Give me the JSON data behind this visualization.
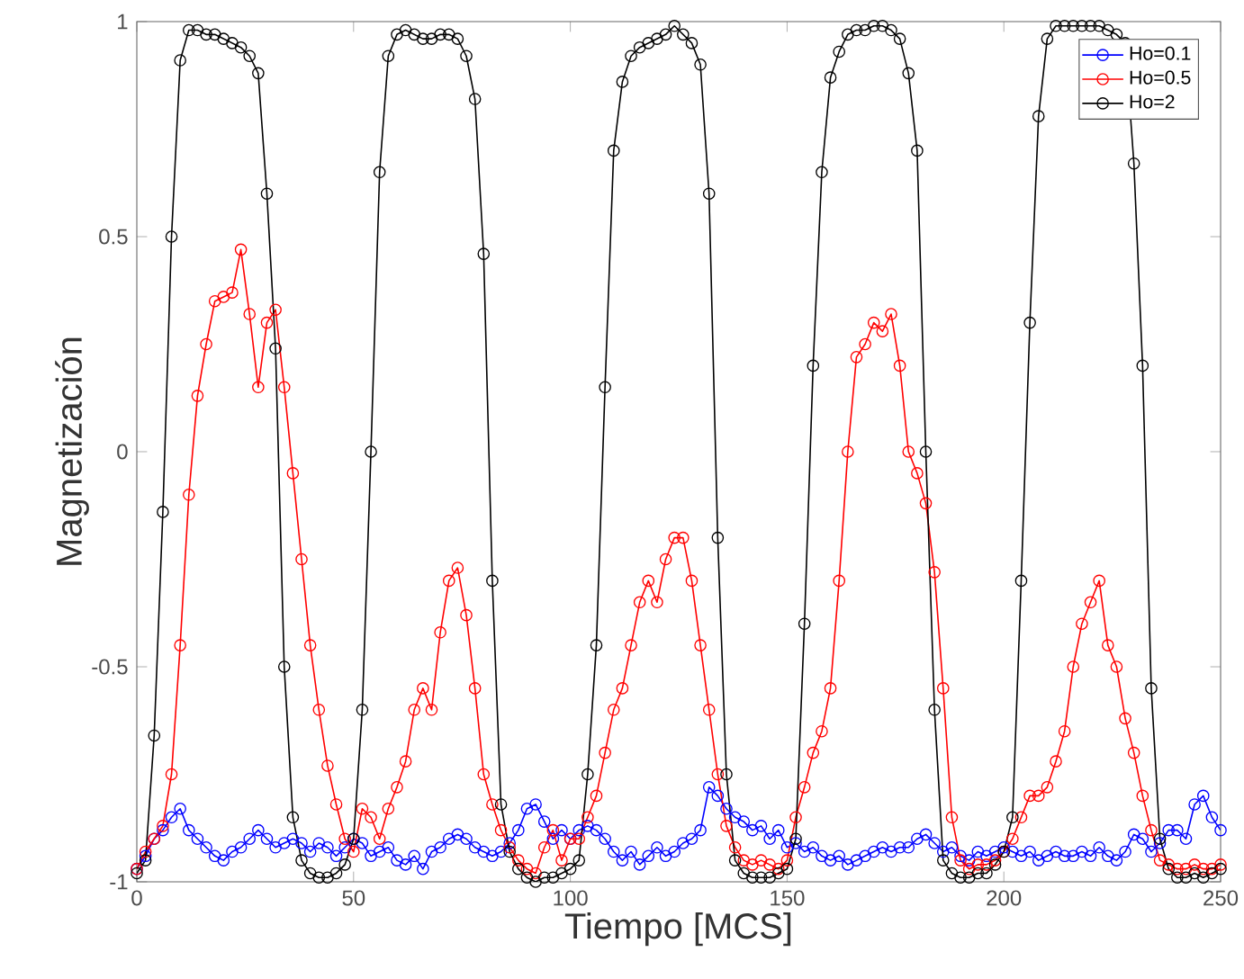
{
  "chart_data": {
    "type": "line",
    "xlabel": "Tiempo [MCS]",
    "ylabel": "Magnetización",
    "xlim": [
      0,
      250
    ],
    "ylim": [
      -1,
      1
    ],
    "xticks": [
      0,
      50,
      100,
      150,
      200,
      250
    ],
    "yticks": [
      -1,
      -0.5,
      0,
      0.5,
      1
    ],
    "grid": false,
    "legend": "top right",
    "marker": "circle",
    "line_style": "solid",
    "x": [
      0,
      2,
      4,
      6,
      8,
      10,
      12,
      14,
      16,
      18,
      20,
      22,
      24,
      26,
      28,
      30,
      32,
      34,
      36,
      38,
      40,
      42,
      44,
      46,
      48,
      50,
      52,
      54,
      56,
      58,
      60,
      62,
      64,
      66,
      68,
      70,
      72,
      74,
      76,
      78,
      80,
      82,
      84,
      86,
      88,
      90,
      92,
      94,
      96,
      98,
      100,
      102,
      104,
      106,
      108,
      110,
      112,
      114,
      116,
      118,
      120,
      122,
      124,
      126,
      128,
      130,
      132,
      134,
      136,
      138,
      140,
      142,
      144,
      146,
      148,
      150,
      152,
      154,
      156,
      158,
      160,
      162,
      164,
      166,
      168,
      170,
      172,
      174,
      176,
      178,
      180,
      182,
      184,
      186,
      188,
      190,
      192,
      194,
      196,
      198,
      200,
      202,
      204,
      206,
      208,
      210,
      212,
      214,
      216,
      218,
      220,
      222,
      224,
      226,
      228,
      230,
      232,
      234,
      236,
      238,
      240,
      242,
      244,
      246,
      248,
      250
    ],
    "series": [
      {
        "name": "Ho=0.1",
        "color": "#0000ff",
        "values": [
          -0.97,
          -0.94,
          -0.9,
          -0.88,
          -0.85,
          -0.83,
          -0.88,
          -0.9,
          -0.92,
          -0.94,
          -0.95,
          -0.93,
          -0.92,
          -0.9,
          -0.88,
          -0.9,
          -0.92,
          -0.91,
          -0.9,
          -0.91,
          -0.93,
          -0.91,
          -0.92,
          -0.94,
          -0.92,
          -0.9,
          -0.91,
          -0.94,
          -0.93,
          -0.92,
          -0.95,
          -0.96,
          -0.94,
          -0.97,
          -0.93,
          -0.92,
          -0.9,
          -0.89,
          -0.9,
          -0.92,
          -0.93,
          -0.94,
          -0.93,
          -0.91,
          -0.88,
          -0.83,
          -0.82,
          -0.86,
          -0.9,
          -0.88,
          -0.9,
          -0.88,
          -0.87,
          -0.88,
          -0.9,
          -0.93,
          -0.95,
          -0.93,
          -0.96,
          -0.94,
          -0.92,
          -0.94,
          -0.93,
          -0.91,
          -0.9,
          -0.88,
          -0.78,
          -0.8,
          -0.83,
          -0.85,
          -0.86,
          -0.88,
          -0.87,
          -0.9,
          -0.88,
          -0.92,
          -0.91,
          -0.93,
          -0.92,
          -0.94,
          -0.95,
          -0.94,
          -0.96,
          -0.95,
          -0.94,
          -0.93,
          -0.92,
          -0.93,
          -0.92,
          -0.92,
          -0.9,
          -0.89,
          -0.91,
          -0.93,
          -0.92,
          -0.94,
          -0.95,
          -0.93,
          -0.94,
          -0.93,
          -0.92,
          -0.93,
          -0.94,
          -0.93,
          -0.95,
          -0.94,
          -0.93,
          -0.94,
          -0.94,
          -0.93,
          -0.94,
          -0.92,
          -0.94,
          -0.95,
          -0.93,
          -0.89,
          -0.9,
          -0.93,
          -0.91,
          -0.88,
          -0.88,
          -0.9,
          -0.82,
          -0.8,
          -0.85,
          -0.88
        ]
      },
      {
        "name": "Ho=0.5",
        "color": "#ff0000",
        "values": [
          -0.97,
          -0.93,
          -0.9,
          -0.87,
          -0.75,
          -0.45,
          -0.1,
          0.13,
          0.25,
          0.35,
          0.36,
          0.37,
          0.47,
          0.32,
          0.15,
          0.3,
          0.33,
          0.15,
          -0.05,
          -0.25,
          -0.45,
          -0.6,
          -0.73,
          -0.82,
          -0.9,
          -0.93,
          -0.83,
          -0.85,
          -0.9,
          -0.83,
          -0.78,
          -0.72,
          -0.6,
          -0.55,
          -0.6,
          -0.42,
          -0.3,
          -0.27,
          -0.38,
          -0.55,
          -0.75,
          -0.82,
          -0.88,
          -0.92,
          -0.95,
          -0.97,
          -0.98,
          -0.92,
          -0.88,
          -0.95,
          -0.9,
          -0.9,
          -0.85,
          -0.8,
          -0.7,
          -0.6,
          -0.55,
          -0.45,
          -0.35,
          -0.3,
          -0.35,
          -0.25,
          -0.2,
          -0.2,
          -0.3,
          -0.45,
          -0.6,
          -0.75,
          -0.87,
          -0.92,
          -0.95,
          -0.96,
          -0.95,
          -0.96,
          -0.97,
          -0.95,
          -0.85,
          -0.78,
          -0.7,
          -0.65,
          -0.55,
          -0.3,
          0.0,
          0.22,
          0.25,
          0.3,
          0.28,
          0.32,
          0.2,
          0.0,
          -0.05,
          -0.12,
          -0.28,
          -0.55,
          -0.85,
          -0.95,
          -0.97,
          -0.96,
          -0.96,
          -0.95,
          -0.93,
          -0.9,
          -0.85,
          -0.8,
          -0.8,
          -0.78,
          -0.72,
          -0.65,
          -0.5,
          -0.4,
          -0.35,
          -0.3,
          -0.45,
          -0.5,
          -0.62,
          -0.7,
          -0.8,
          -0.88,
          -0.95,
          -0.96,
          -0.97,
          -0.97,
          -0.96,
          -0.97,
          -0.97,
          -0.96
        ]
      },
      {
        "name": "Ho=2",
        "color": "#000000",
        "values": [
          -0.98,
          -0.95,
          -0.66,
          -0.14,
          0.5,
          0.91,
          0.98,
          0.98,
          0.97,
          0.97,
          0.96,
          0.95,
          0.94,
          0.92,
          0.88,
          0.6,
          0.24,
          -0.5,
          -0.85,
          -0.95,
          -0.98,
          -0.99,
          -0.99,
          -0.98,
          -0.96,
          -0.9,
          -0.6,
          0.0,
          0.65,
          0.92,
          0.97,
          0.98,
          0.97,
          0.96,
          0.96,
          0.97,
          0.97,
          0.96,
          0.92,
          0.82,
          0.46,
          -0.3,
          -0.82,
          -0.93,
          -0.97,
          -0.99,
          -1.0,
          -0.99,
          -0.99,
          -0.98,
          -0.97,
          -0.95,
          -0.75,
          -0.45,
          0.15,
          0.7,
          0.86,
          0.92,
          0.94,
          0.95,
          0.96,
          0.97,
          0.99,
          0.97,
          0.95,
          0.9,
          0.6,
          -0.2,
          -0.75,
          -0.95,
          -0.98,
          -0.99,
          -0.99,
          -0.99,
          -0.98,
          -0.97,
          -0.9,
          -0.4,
          0.2,
          0.65,
          0.87,
          0.93,
          0.97,
          0.98,
          0.98,
          0.99,
          0.99,
          0.98,
          0.96,
          0.88,
          0.7,
          0.0,
          -0.6,
          -0.95,
          -0.98,
          -0.99,
          -0.99,
          -0.98,
          -0.98,
          -0.96,
          -0.93,
          -0.85,
          -0.3,
          0.3,
          0.78,
          0.96,
          0.99,
          0.99,
          0.99,
          0.99,
          0.99,
          0.99,
          0.98,
          0.97,
          0.95,
          0.67,
          0.2,
          -0.55,
          -0.9,
          -0.97,
          -0.99,
          -0.99,
          -0.98,
          -0.99,
          -0.98,
          -0.97
        ]
      }
    ]
  }
}
